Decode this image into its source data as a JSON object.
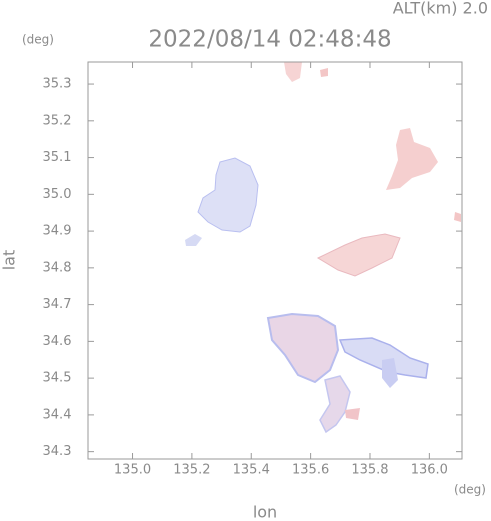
{
  "chart_data": {
    "type": "map",
    "title": "2022/08/14 02:48:48",
    "subtitle": "ALT(km) 2.0",
    "y_unit": "(deg)",
    "x_unit": "(deg)",
    "x_label": "lon",
    "y_label": "lat",
    "xlim": [
      134.85,
      136.11
    ],
    "ylim": [
      34.28,
      35.36
    ],
    "xticks": [
      {
        "value": 135,
        "label": "135.0"
      },
      135.2,
      135.4,
      135.6,
      135.8,
      {
        "value": 136,
        "label": "136.0"
      }
    ],
    "yticks": [
      34.3,
      34.4,
      34.5,
      34.6,
      34.7,
      34.8,
      34.9,
      {
        "value": 35,
        "label": "35.0"
      },
      35.1,
      35.2,
      35.3
    ]
  }
}
